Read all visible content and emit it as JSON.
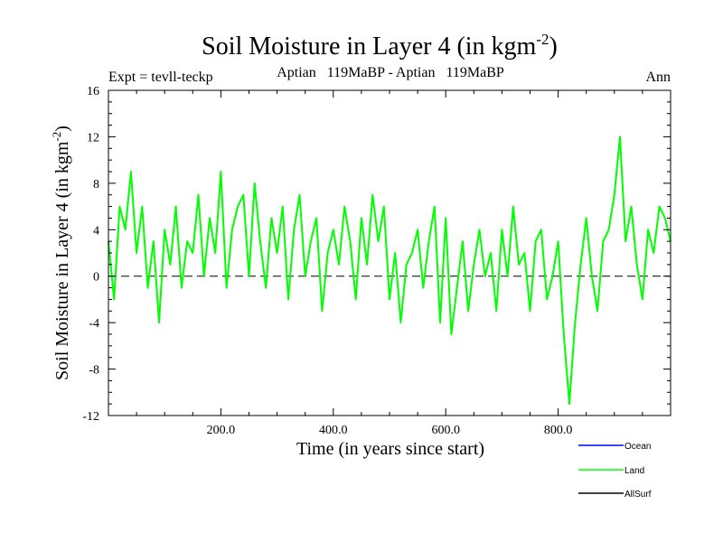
{
  "chart_data": {
    "type": "line",
    "title": {
      "main": "Soil Moisture in Layer 4 (in kgm",
      "sup": "-2",
      "close": ")"
    },
    "subtitle_left": "Expt = tevll-teckp",
    "subtitle_center": "Aptian   119MaBP - Aptian   119MaBP",
    "subtitle_right": "Ann",
    "xlabel": "Time (in years since start)",
    "ylabel": {
      "main": "Soil Moisture in Layer 4 (in kgm",
      "sup": "-2",
      "close": ")"
    },
    "xlim": [
      0,
      1000
    ],
    "ylim": [
      -12,
      16
    ],
    "x_ticks": [
      200,
      400,
      600,
      800
    ],
    "x_tick_labels": [
      "200.0",
      "400.0",
      "600.0",
      "800.0"
    ],
    "y_ticks": [
      -12,
      -8,
      -4,
      0,
      4,
      8,
      12,
      16
    ],
    "y_tick_labels": [
      "-12",
      "-8",
      "-4",
      "0",
      "4",
      "8",
      "12",
      "16"
    ],
    "zero_line": true,
    "legend": [
      {
        "name": "Ocean",
        "color": "#0000ff"
      },
      {
        "name": "Land",
        "color": "#00ff00"
      },
      {
        "name": "AllSurf",
        "color": "#000000"
      }
    ],
    "series": [
      {
        "name": "Land",
        "color": "#00ff00",
        "x": [
          0,
          10,
          20,
          30,
          40,
          50,
          60,
          70,
          80,
          90,
          100,
          110,
          120,
          130,
          140,
          150,
          160,
          170,
          180,
          190,
          200,
          210,
          220,
          230,
          240,
          250,
          260,
          270,
          280,
          290,
          300,
          310,
          320,
          330,
          340,
          350,
          360,
          370,
          380,
          390,
          400,
          410,
          420,
          430,
          440,
          450,
          460,
          470,
          480,
          490,
          500,
          510,
          520,
          530,
          540,
          550,
          560,
          570,
          580,
          590,
          600,
          610,
          620,
          630,
          640,
          650,
          660,
          670,
          680,
          690,
          700,
          710,
          720,
          730,
          740,
          750,
          760,
          770,
          780,
          790,
          800,
          810,
          820,
          830,
          840,
          850,
          860,
          870,
          880,
          890,
          900,
          910,
          920,
          930,
          940,
          950,
          960,
          970,
          980,
          990,
          1000
        ],
        "values": [
          3,
          -2,
          6,
          4,
          9,
          2,
          6,
          -1,
          3,
          -4,
          4,
          1,
          6,
          -1,
          3,
          2,
          7,
          0,
          5,
          2,
          9,
          -1,
          4,
          6,
          7,
          0,
          8,
          3,
          -1,
          5,
          2,
          6,
          -2,
          4,
          7,
          0,
          3,
          5,
          -3,
          2,
          4,
          1,
          6,
          3,
          -2,
          5,
          1,
          7,
          3,
          6,
          -2,
          2,
          -4,
          1,
          2,
          4,
          -1,
          3,
          6,
          -4,
          5,
          -5,
          -1,
          3,
          -3,
          1,
          4,
          0,
          2,
          -3,
          4,
          0,
          6,
          1,
          2,
          -3,
          3,
          4,
          -2,
          0,
          3,
          -5,
          -11,
          -4,
          1,
          5,
          0,
          -3,
          3,
          4,
          7,
          12,
          3,
          6,
          1,
          -2,
          4,
          2,
          6,
          5,
          3
        ]
      }
    ]
  }
}
